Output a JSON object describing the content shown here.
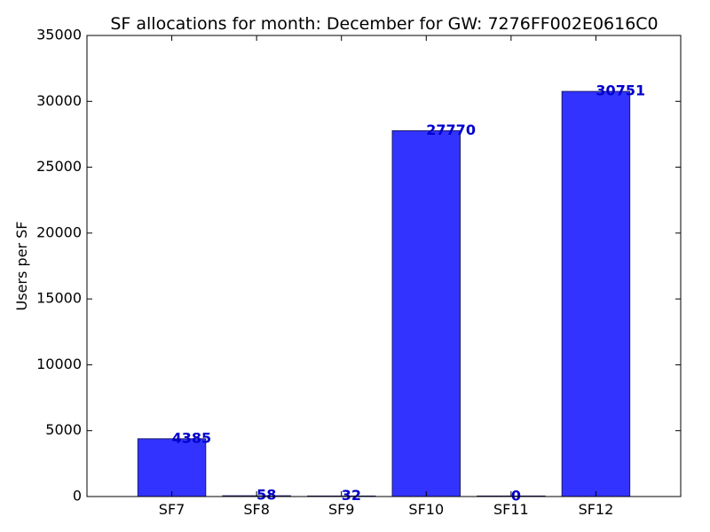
{
  "chart_data": {
    "type": "bar",
    "title": "SF allocations for month: December for GW: 7276FF002E0616C0",
    "xlabel": "",
    "ylabel": "Users per SF",
    "categories": [
      "SF7",
      "SF8",
      "SF9",
      "SF10",
      "SF11",
      "SF12"
    ],
    "values": [
      4385,
      58,
      32,
      27770,
      0,
      30751
    ],
    "data_labels": [
      "4385",
      "58",
      "32",
      "27770",
      "0",
      "30751"
    ],
    "ylim": [
      0,
      35000
    ],
    "yticks": [
      0,
      5000,
      10000,
      15000,
      20000,
      25000,
      30000,
      35000
    ],
    "ytick_labels": [
      "0",
      "5000",
      "10000",
      "15000",
      "20000",
      "25000",
      "30000",
      "35000"
    ],
    "grid": false,
    "legend": "none",
    "colors": {
      "bar_fill": "#3333ff",
      "bar_edge": "#1a1a66",
      "label_text": "#0000cc",
      "axis": "#000000"
    }
  }
}
